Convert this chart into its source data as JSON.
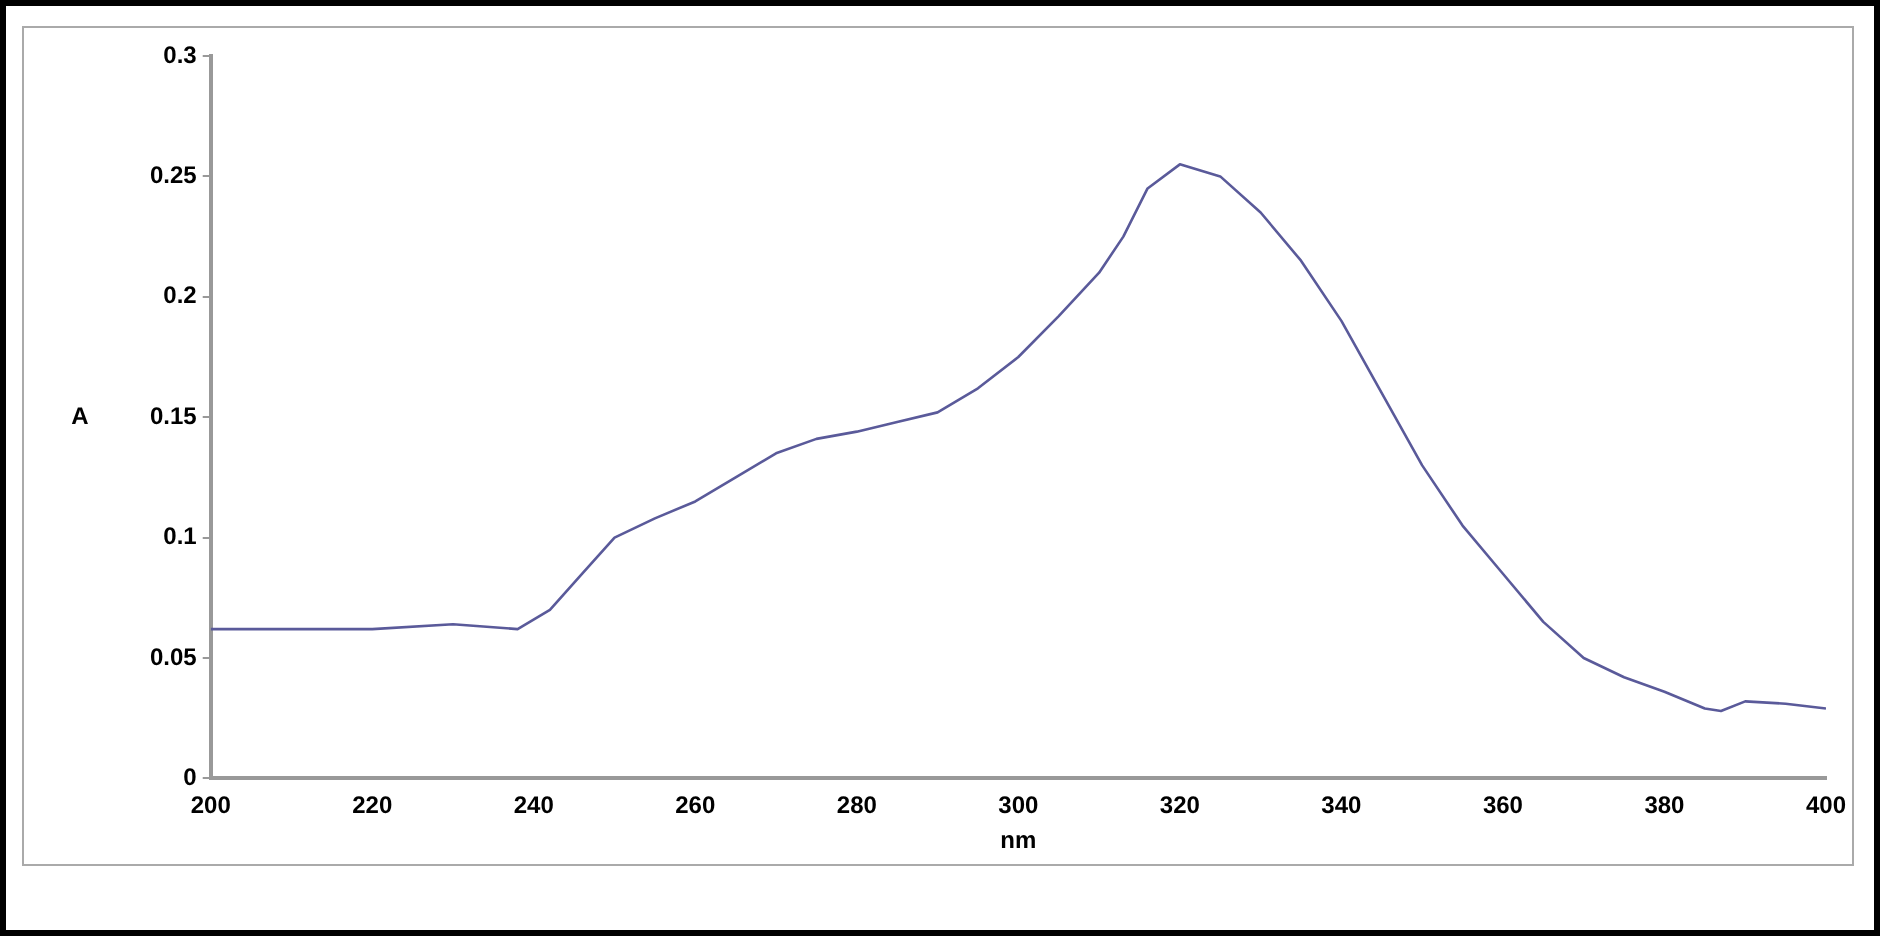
{
  "chart_data": {
    "type": "line",
    "xlabel": "nm",
    "ylabel": "A",
    "x": [
      200,
      210,
      220,
      230,
      238,
      242,
      246,
      250,
      255,
      260,
      265,
      270,
      275,
      280,
      285,
      290,
      295,
      300,
      305,
      310,
      313,
      316,
      320,
      325,
      330,
      335,
      340,
      345,
      350,
      355,
      360,
      365,
      370,
      375,
      380,
      385,
      387,
      390,
      395,
      400
    ],
    "series": [
      {
        "color": "#5a5a9a",
        "values": [
          0.062,
          0.062,
          0.062,
          0.064,
          0.062,
          0.07,
          0.085,
          0.1,
          0.108,
          0.115,
          0.125,
          0.135,
          0.141,
          0.144,
          0.148,
          0.152,
          0.162,
          0.175,
          0.192,
          0.21,
          0.225,
          0.245,
          0.255,
          0.25,
          0.235,
          0.215,
          0.19,
          0.16,
          0.13,
          0.105,
          0.085,
          0.065,
          0.05,
          0.042,
          0.036,
          0.029,
          0.028,
          0.032,
          0.031,
          0.029
        ]
      }
    ],
    "xlim": [
      200,
      400
    ],
    "xticks": [
      200,
      220,
      240,
      260,
      280,
      300,
      320,
      340,
      360,
      380,
      400
    ],
    "ylim": [
      0,
      0.3
    ],
    "yticks": [
      0,
      0.05,
      0.1,
      0.15,
      0.2,
      0.25,
      0.3
    ],
    "grid": false,
    "legend": false,
    "marker": "none",
    "line_style": "solid"
  }
}
